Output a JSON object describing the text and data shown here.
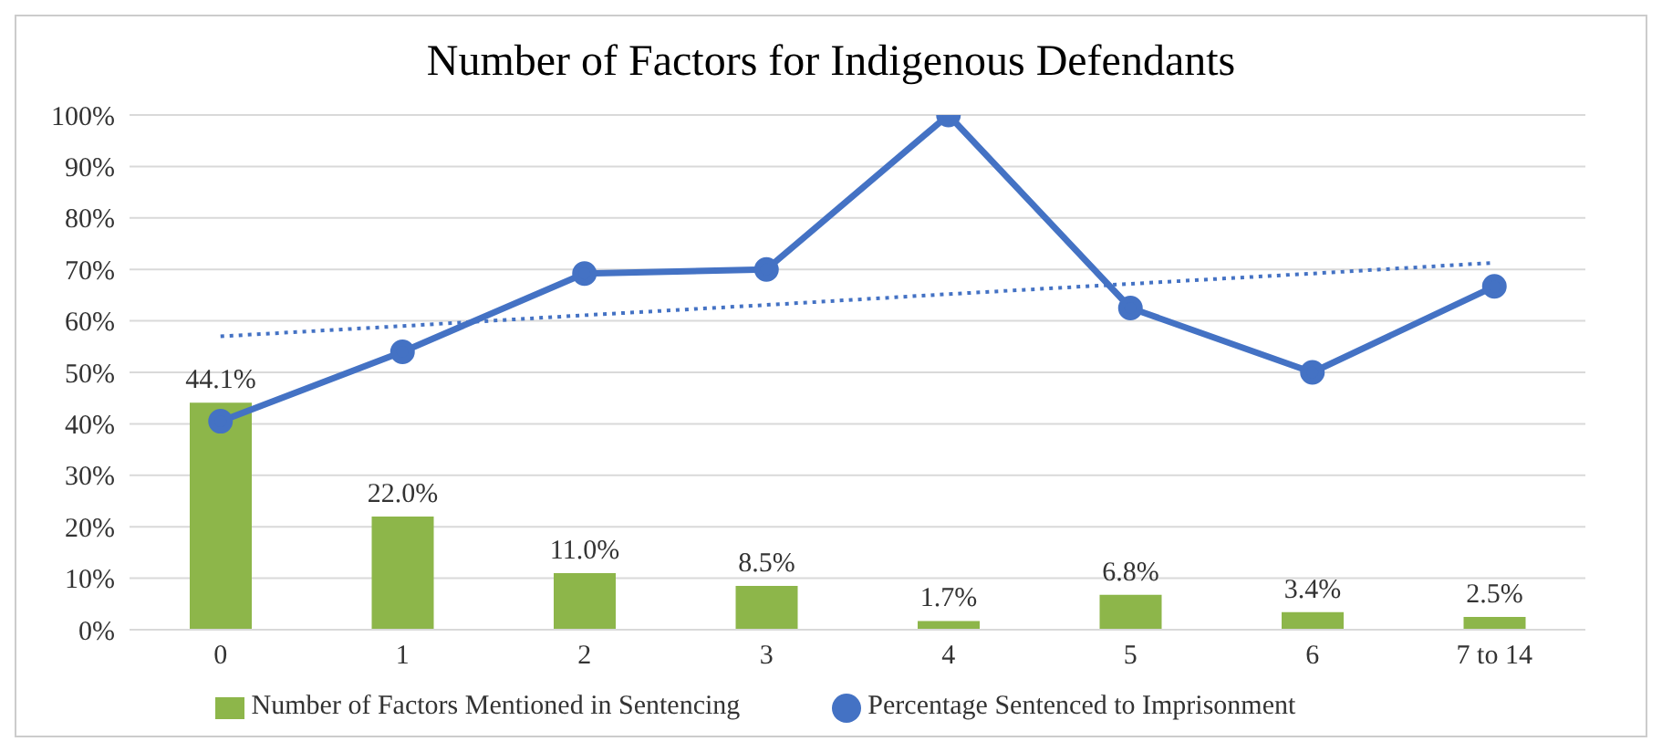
{
  "chart_data": {
    "type": "bar",
    "title": "Number of Factors for Indigenous Defendants",
    "categories": [
      "0",
      "1",
      "2",
      "3",
      "4",
      "5",
      "6",
      "7 to 14"
    ],
    "series": [
      {
        "name": "Number of Factors Mentioned in Sentencing",
        "color": "#8db64a",
        "values": [
          44.1,
          22.0,
          11.0,
          8.5,
          1.7,
          6.8,
          3.4,
          2.5
        ],
        "value_labels": [
          "44.1%",
          "22.0%",
          "11.0%",
          "8.5%",
          "1.7%",
          "6.8%",
          "3.4%",
          "2.5%"
        ]
      },
      {
        "name": "Percentage Sentenced to Imprisonment",
        "type": "line",
        "color": "#4472c4",
        "marker": "circle",
        "values": [
          40.5,
          54,
          69.2,
          70,
          100,
          62.5,
          50,
          66.7
        ]
      },
      {
        "type": "line",
        "color": "#4472c4",
        "marker": "none",
        "line_style": "dotted",
        "values": [
          57,
          59,
          61.1,
          63.1,
          65.2,
          67.2,
          69.2,
          71.3
        ]
      }
    ],
    "ylim": [
      0,
      100
    ],
    "yticks": [
      {
        "value": 0,
        "label": "0%"
      },
      {
        "value": 10,
        "label": "10%"
      },
      {
        "value": 20,
        "label": "20%"
      },
      {
        "value": 30,
        "label": "30%"
      },
      {
        "value": 40,
        "label": "40%"
      },
      {
        "value": 50,
        "label": "50%"
      },
      {
        "value": 60,
        "label": "60%"
      },
      {
        "value": 70,
        "label": "70%"
      },
      {
        "value": 80,
        "label": "80%"
      },
      {
        "value": 90,
        "label": "90%"
      },
      {
        "value": 100,
        "label": "100%"
      }
    ],
    "grid": "y",
    "legend": "bottom"
  }
}
